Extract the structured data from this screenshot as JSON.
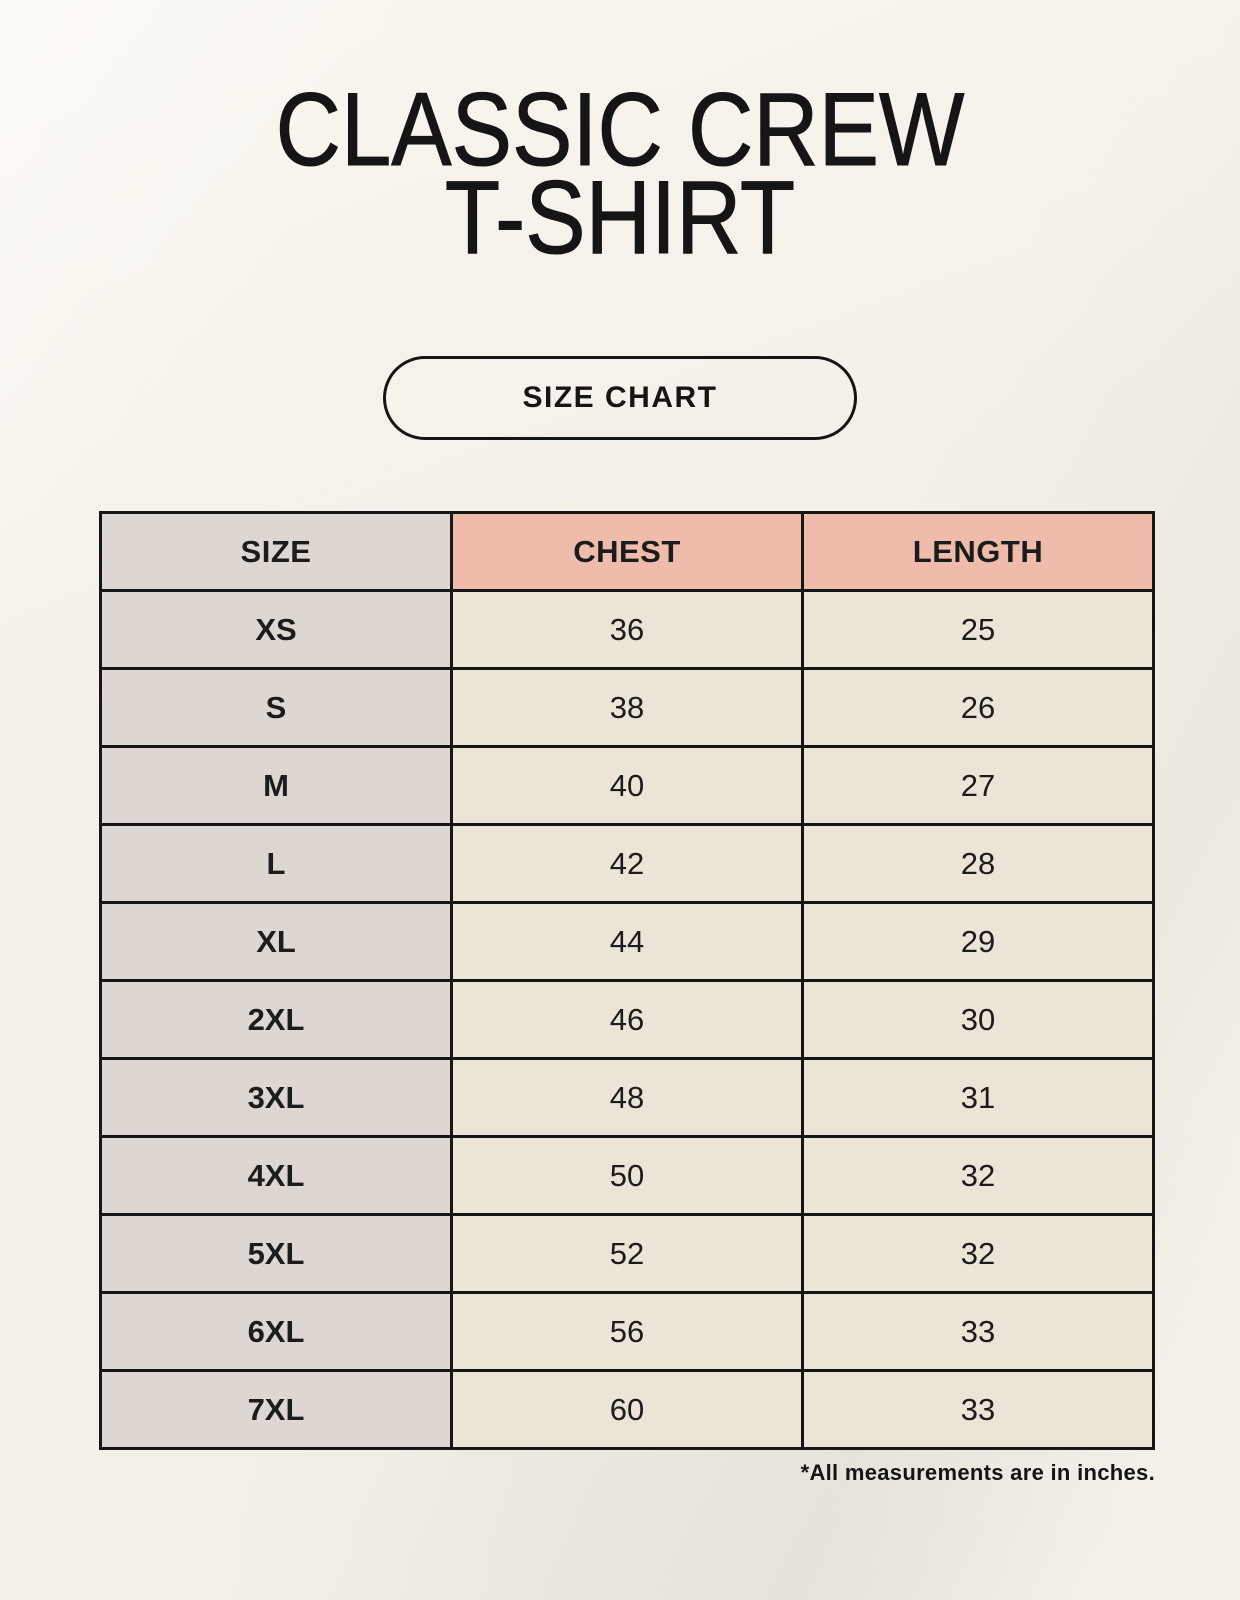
{
  "header": {
    "title_line1": "CLASSIC CREW",
    "title_line2": "T-SHIRT"
  },
  "size_chart_button": {
    "label": "SIZE CHART"
  },
  "colors": {
    "background": "#f4f0e8",
    "header_accent": "#efbcab",
    "size_column": "#ded7d1",
    "data_cell": "#ebe4d7",
    "border": "#161616",
    "text": "#1c1c1c"
  },
  "chart_data": {
    "type": "table",
    "title": "CLASSIC CREW T-SHIRT",
    "subtitle": "SIZE CHART",
    "columns": [
      "SIZE",
      "CHEST",
      "LENGTH"
    ],
    "rows": [
      [
        "XS",
        36,
        25
      ],
      [
        "S",
        38,
        26
      ],
      [
        "M",
        40,
        27
      ],
      [
        "L",
        42,
        28
      ],
      [
        "XL",
        44,
        29
      ],
      [
        "2XL",
        46,
        30
      ],
      [
        "3XL",
        48,
        31
      ],
      [
        "4XL",
        50,
        32
      ],
      [
        "5XL",
        52,
        32
      ],
      [
        "6XL",
        56,
        33
      ],
      [
        "7XL",
        60,
        33
      ]
    ],
    "units": "inches",
    "footnote": "*All measurements are in inches."
  }
}
